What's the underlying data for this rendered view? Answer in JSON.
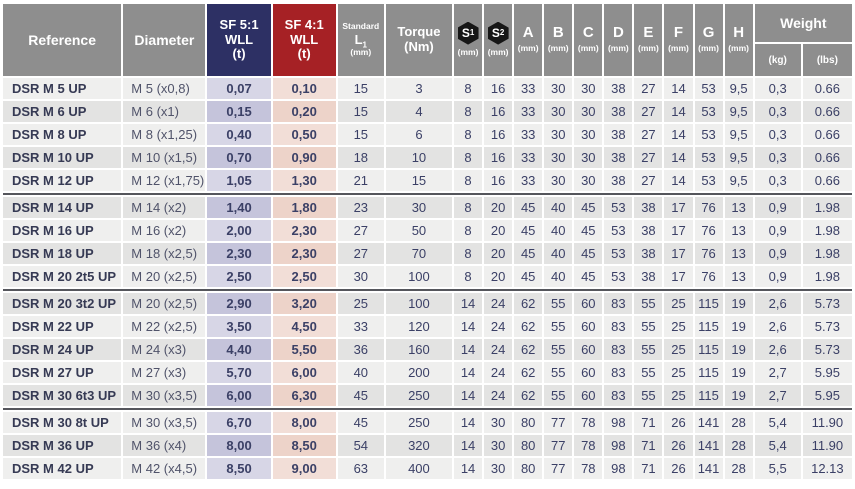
{
  "colors": {
    "page_bg": "#ffffff",
    "header_gray": "#8e8e8e",
    "sf5_navy": "#2d3064",
    "sf4_red": "#a62125",
    "sf5_cell_light": "#d7d6e6",
    "sf5_cell_dark": "#c5c4db",
    "sf4_cell_light": "#f2ded7",
    "sf4_cell_dark": "#edd3c9",
    "row_light": "#efefee",
    "row_dark": "#e3e3e2",
    "sep_color": "#55565c",
    "text_navy": "#3b4066",
    "text_ref": "#363a54",
    "text_dia": "#50536a",
    "hex_black": "#161616"
  },
  "header": {
    "reference": "Reference",
    "diameter": "Diameter",
    "sf5_lines": [
      "SF 5:1",
      "WLL",
      "(t)"
    ],
    "sf4_lines": [
      "SF 4:1",
      "WLL",
      "(t)"
    ],
    "l1": {
      "top": "Standard",
      "letter": "L",
      "sub": "1",
      "unit": "(mm)"
    },
    "torque_lines": [
      "Torque",
      "(Nm)"
    ],
    "weight": {
      "label": "Weight",
      "kg": "(kg)",
      "lbs": "(lbs)"
    }
  },
  "dims": [
    {
      "letter": "S",
      "sub": "1",
      "unit": "(mm)",
      "icon": "hex-nut"
    },
    {
      "letter": "S",
      "sub": "2",
      "unit": "(mm)",
      "icon": "hex-nut"
    },
    {
      "letter": "A",
      "unit": "(mm)"
    },
    {
      "letter": "B",
      "unit": "(mm)"
    },
    {
      "letter": "C",
      "unit": "(mm)"
    },
    {
      "letter": "D",
      "unit": "(mm)"
    },
    {
      "letter": "E",
      "unit": "(mm)"
    },
    {
      "letter": "F",
      "unit": "(mm)"
    },
    {
      "letter": "G",
      "unit": "(mm)"
    },
    {
      "letter": "H",
      "unit": "(mm)"
    }
  ],
  "rows": [
    {
      "reference": "DSR M 5 UP",
      "diameter": "M 5 (x0,8)",
      "sf5": "0,07",
      "sf4": "0,10",
      "l1": "15",
      "torque": "3",
      "dims": [
        "8",
        "16",
        "33",
        "30",
        "30",
        "38",
        "27",
        "14",
        "53",
        "9,5"
      ],
      "kg": "0,3",
      "lbs": "0.66"
    },
    {
      "reference": "DSR M 6 UP",
      "diameter": "M 6 (x1)",
      "sf5": "0,15",
      "sf4": "0,20",
      "l1": "15",
      "torque": "4",
      "dims": [
        "8",
        "16",
        "33",
        "30",
        "30",
        "38",
        "27",
        "14",
        "53",
        "9,5"
      ],
      "kg": "0,3",
      "lbs": "0.66"
    },
    {
      "reference": "DSR M 8 UP",
      "diameter": "M 8 (x1,25)",
      "sf5": "0,40",
      "sf4": "0,50",
      "l1": "15",
      "torque": "6",
      "dims": [
        "8",
        "16",
        "33",
        "30",
        "30",
        "38",
        "27",
        "14",
        "53",
        "9,5"
      ],
      "kg": "0,3",
      "lbs": "0.66"
    },
    {
      "reference": "DSR M 10 UP",
      "diameter": "M 10 (x1,5)",
      "sf5": "0,70",
      "sf4": "0,90",
      "l1": "18",
      "torque": "10",
      "dims": [
        "8",
        "16",
        "33",
        "30",
        "30",
        "38",
        "27",
        "14",
        "53",
        "9,5"
      ],
      "kg": "0,3",
      "lbs": "0.66"
    },
    {
      "reference": "DSR M 12 UP",
      "diameter": "M 12 (x1,75)",
      "sf5": "1,05",
      "sf4": "1,30",
      "l1": "21",
      "torque": "15",
      "dims": [
        "8",
        "16",
        "33",
        "30",
        "30",
        "38",
        "27",
        "14",
        "53",
        "9,5"
      ],
      "kg": "0,3",
      "lbs": "0.66"
    },
    {
      "reference": "DSR M 14 UP",
      "diameter": "M 14 (x2)",
      "sf5": "1,40",
      "sf4": "1,80",
      "l1": "23",
      "torque": "30",
      "dims": [
        "8",
        "20",
        "45",
        "40",
        "45",
        "53",
        "38",
        "17",
        "76",
        "13"
      ],
      "kg": "0,9",
      "lbs": "1.98",
      "separator_before": true
    },
    {
      "reference": "DSR M 16 UP",
      "diameter": "M 16 (x2)",
      "sf5": "2,00",
      "sf4": "2,30",
      "l1": "27",
      "torque": "50",
      "dims": [
        "8",
        "20",
        "45",
        "40",
        "45",
        "53",
        "38",
        "17",
        "76",
        "13"
      ],
      "kg": "0,9",
      "lbs": "1.98"
    },
    {
      "reference": "DSR M 18 UP",
      "diameter": "M 18 (x2,5)",
      "sf5": "2,30",
      "sf4": "2,30",
      "l1": "27",
      "torque": "70",
      "dims": [
        "8",
        "20",
        "45",
        "40",
        "45",
        "53",
        "38",
        "17",
        "76",
        "13"
      ],
      "kg": "0,9",
      "lbs": "1.98"
    },
    {
      "reference": "DSR M 20 2t5 UP",
      "diameter": "M 20 (x2,5)",
      "sf5": "2,50",
      "sf4": "2,50",
      "l1": "30",
      "torque": "100",
      "dims": [
        "8",
        "20",
        "45",
        "40",
        "45",
        "53",
        "38",
        "17",
        "76",
        "13"
      ],
      "kg": "0,9",
      "lbs": "1.98"
    },
    {
      "reference": "DSR M 20 3t2 UP",
      "diameter": "M 20 (x2,5)",
      "sf5": "2,90",
      "sf4": "3,20",
      "l1": "25",
      "torque": "100",
      "dims": [
        "14",
        "24",
        "62",
        "55",
        "60",
        "83",
        "55",
        "25",
        "115",
        "19"
      ],
      "kg": "2,6",
      "lbs": "5.73",
      "separator_before": true
    },
    {
      "reference": "DSR M 22 UP",
      "diameter": "M 22 (x2,5)",
      "sf5": "3,50",
      "sf4": "4,50",
      "l1": "33",
      "torque": "120",
      "dims": [
        "14",
        "24",
        "62",
        "55",
        "60",
        "83",
        "55",
        "25",
        "115",
        "19"
      ],
      "kg": "2,6",
      "lbs": "5.73"
    },
    {
      "reference": "DSR M 24 UP",
      "diameter": "M 24 (x3)",
      "sf5": "4,40",
      "sf4": "5,50",
      "l1": "36",
      "torque": "160",
      "dims": [
        "14",
        "24",
        "62",
        "55",
        "60",
        "83",
        "55",
        "25",
        "115",
        "19"
      ],
      "kg": "2,6",
      "lbs": "5.73"
    },
    {
      "reference": "DSR M 27 UP",
      "diameter": "M 27 (x3)",
      "sf5": "5,70",
      "sf4": "6,00",
      "l1": "40",
      "torque": "200",
      "dims": [
        "14",
        "24",
        "62",
        "55",
        "60",
        "83",
        "55",
        "25",
        "115",
        "19"
      ],
      "kg": "2,7",
      "lbs": "5.95"
    },
    {
      "reference": "DSR M 30 6t3 UP",
      "diameter": "M 30 (x3,5)",
      "sf5": "6,00",
      "sf4": "6,30",
      "l1": "45",
      "torque": "250",
      "dims": [
        "14",
        "24",
        "62",
        "55",
        "60",
        "83",
        "55",
        "25",
        "115",
        "19"
      ],
      "kg": "2,7",
      "lbs": "5.95"
    },
    {
      "reference": "DSR M 30 8t UP",
      "diameter": "M 30 (x3,5)",
      "sf5": "6,70",
      "sf4": "8,00",
      "l1": "45",
      "torque": "250",
      "dims": [
        "14",
        "30",
        "80",
        "77",
        "78",
        "98",
        "71",
        "26",
        "141",
        "28"
      ],
      "kg": "5,4",
      "lbs": "11.90",
      "separator_before": true
    },
    {
      "reference": "DSR M 36 UP",
      "diameter": "M 36 (x4)",
      "sf5": "8,00",
      "sf4": "8,50",
      "l1": "54",
      "torque": "320",
      "dims": [
        "14",
        "30",
        "80",
        "77",
        "78",
        "98",
        "71",
        "26",
        "141",
        "28"
      ],
      "kg": "5,4",
      "lbs": "11.90"
    },
    {
      "reference": "DSR M 42 UP",
      "diameter": "M 42 (x4,5)",
      "sf5": "8,50",
      "sf4": "9,00",
      "l1": "63",
      "torque": "400",
      "dims": [
        "14",
        "30",
        "80",
        "77",
        "78",
        "98",
        "71",
        "26",
        "141",
        "28"
      ],
      "kg": "5,5",
      "lbs": "12.13"
    }
  ]
}
